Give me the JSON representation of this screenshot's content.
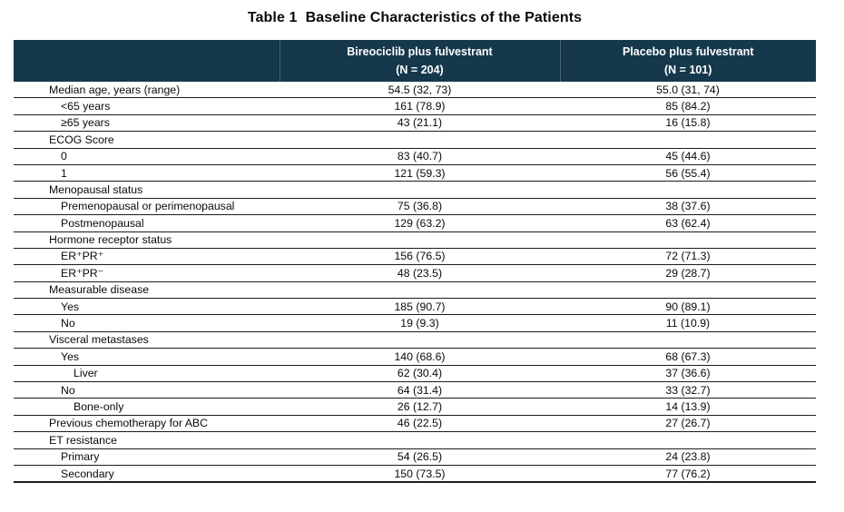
{
  "title": "Table 1  Baseline Characteristics of the Patients",
  "table": {
    "colors": {
      "header_bg": "#15384C",
      "header_text": "#ffffff",
      "row_border": "#1c1c1c"
    },
    "columns": [
      {
        "label": "",
        "sublabel": ""
      },
      {
        "label": "Bireociclib plus fulvestrant",
        "sublabel": "(N = 204)"
      },
      {
        "label": "Placebo plus fulvestrant",
        "sublabel": "(N = 101)"
      }
    ],
    "rows": [
      {
        "label": "Median age, years (range)",
        "indent": 1,
        "bireociclib": "54.5 (32, 73)",
        "placebo": "55.0 (31, 74)"
      },
      {
        "label": "<65 years",
        "indent": 2,
        "bireociclib": "161 (78.9)",
        "placebo": "85 (84.2)"
      },
      {
        "label": "≥65 years",
        "indent": 2,
        "bireociclib": "43 (21.1)",
        "placebo": "16 (15.8)"
      },
      {
        "label": "ECOG Score",
        "indent": 1,
        "bireociclib": "",
        "placebo": ""
      },
      {
        "label": "0",
        "indent": 2,
        "bireociclib": "83 (40.7)",
        "placebo": "45 (44.6)"
      },
      {
        "label": "1",
        "indent": 2,
        "bireociclib": "121 (59.3)",
        "placebo": "56 (55.4)"
      },
      {
        "label": "Menopausal status",
        "indent": 1,
        "bireociclib": "",
        "placebo": ""
      },
      {
        "label": "Premenopausal or perimenopausal",
        "indent": 2,
        "bireociclib": "75 (36.8)",
        "placebo": "38 (37.6)"
      },
      {
        "label": "Postmenopausal",
        "indent": 2,
        "bireociclib": "129 (63.2)",
        "placebo": "63 (62.4)"
      },
      {
        "label": "Hormone receptor status",
        "indent": 1,
        "bireociclib": "",
        "placebo": ""
      },
      {
        "label": "ER⁺PR⁺",
        "indent": 2,
        "bireociclib": "156 (76.5)",
        "placebo": "72 (71.3)"
      },
      {
        "label": "ER⁺PR⁻",
        "indent": 2,
        "bireociclib": "48 (23.5)",
        "placebo": "29 (28.7)"
      },
      {
        "label": "Measurable disease",
        "indent": 1,
        "bireociclib": "",
        "placebo": ""
      },
      {
        "label": "Yes",
        "indent": 2,
        "bireociclib": "185 (90.7)",
        "placebo": "90 (89.1)"
      },
      {
        "label": "No",
        "indent": 2,
        "bireociclib": "19 (9.3)",
        "placebo": "11 (10.9)"
      },
      {
        "label": "Visceral metastases",
        "indent": 1,
        "bireociclib": "",
        "placebo": ""
      },
      {
        "label": "Yes",
        "indent": 2,
        "bireociclib": "140 (68.6)",
        "placebo": "68 (67.3)"
      },
      {
        "label": "Liver",
        "indent": 3,
        "bireociclib": "62 (30.4)",
        "placebo": "37 (36.6)"
      },
      {
        "label": "No",
        "indent": 2,
        "bireociclib": "64 (31.4)",
        "placebo": "33 (32.7)"
      },
      {
        "label": "Bone-only",
        "indent": 3,
        "bireociclib": "26 (12.7)",
        "placebo": "14 (13.9)"
      },
      {
        "label": "Previous chemotherapy for ABC",
        "indent": 1,
        "bireociclib": "46 (22.5)",
        "placebo": "27 (26.7)"
      },
      {
        "label": "ET resistance",
        "indent": 1,
        "bireociclib": "",
        "placebo": ""
      },
      {
        "label": "Primary",
        "indent": 2,
        "bireociclib": "54 (26.5)",
        "placebo": "24 (23.8)"
      },
      {
        "label": "Secondary",
        "indent": 2,
        "bireociclib": "150 (73.5)",
        "placebo": "77 (76.2)"
      }
    ]
  }
}
